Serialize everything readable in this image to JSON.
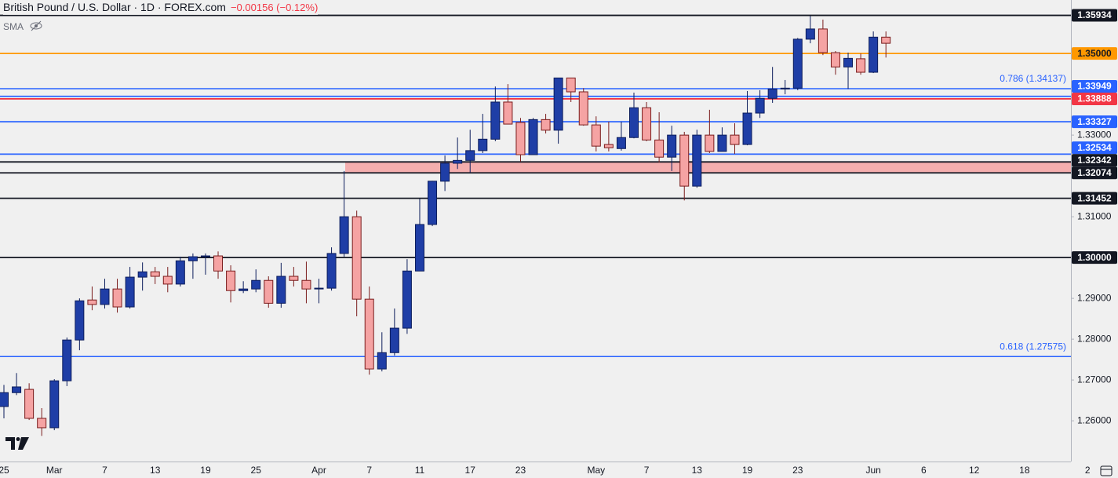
{
  "chart_data": {
    "type": "candlestick",
    "title": "British Pound / U.S. Dollar · 1D · FOREX.com",
    "change": "−0.00156 (−0.12%)",
    "indicator": "SMA",
    "categories": [
      "25",
      null,
      null,
      null,
      "Mar",
      null,
      null,
      null,
      "7",
      null,
      null,
      null,
      "13",
      null,
      null,
      null,
      "19",
      null,
      null,
      null,
      "25",
      null,
      null,
      null,
      null,
      "Apr",
      null,
      null,
      null,
      "7",
      null,
      null,
      null,
      "11",
      null,
      null,
      null,
      "17",
      null,
      null,
      null,
      "23",
      null,
      null,
      null,
      null,
      null,
      "May",
      null,
      null,
      null,
      "7",
      null,
      null,
      null,
      "13",
      null,
      null,
      null,
      "19",
      null,
      null,
      null,
      "23",
      null,
      null,
      null,
      null,
      null,
      "Jun",
      null,
      null,
      null,
      "6",
      null,
      null,
      null,
      "12",
      null,
      null,
      null,
      "18",
      null,
      null,
      null,
      null,
      "2"
    ],
    "open": [
      1.2635,
      1.2669,
      1.2677,
      1.2606,
      1.2583,
      1.2698,
      1.2798,
      1.2896,
      1.2885,
      1.2923,
      1.2879,
      1.2952,
      1.2965,
      1.2954,
      1.2935,
      1.2992,
      1.3002,
      1.3004,
      1.2967,
      1.2919,
      1.2923,
      1.2944,
      1.2888,
      1.2954,
      1.2944,
      1.2923,
      1.2925,
      1.301,
      1.31,
      1.2898,
      1.2727,
      1.2767,
      1.2827,
      1.2967,
      1.3081,
      1.3187,
      1.3231,
      1.3238,
      1.3262,
      1.329,
      1.3381,
      1.3331,
      1.3252,
      1.3338,
      1.3312,
      1.344,
      1.3406,
      1.3325,
      1.3277,
      1.3267,
      1.3294,
      1.3367,
      1.3288,
      1.3246,
      1.33,
      1.3175,
      1.33,
      1.326,
      1.33,
      1.3277,
      1.3354,
      1.339,
      1.3413,
      1.3415,
      1.3535,
      1.356,
      1.3502,
      1.3467,
      1.3487,
      1.3454,
      1.354,
      null,
      null,
      null,
      null,
      null,
      null,
      null,
      null,
      null,
      null,
      null,
      null,
      null,
      null,
      null,
      null
    ],
    "high": [
      1.2688,
      1.2717,
      1.2692,
      1.2631,
      1.2702,
      1.2804,
      1.29,
      1.2929,
      1.2948,
      1.2948,
      1.2977,
      1.2988,
      1.2977,
      1.2977,
      1.3002,
      1.301,
      1.301,
      1.3015,
      1.2981,
      1.2942,
      1.2971,
      1.2954,
      1.2987,
      1.2977,
      1.299,
      1.2948,
      1.3025,
      1.3212,
      1.3115,
      1.2929,
      1.2817,
      1.2875,
      1.2996,
      1.3144,
      1.3188,
      1.325,
      1.3294,
      1.3313,
      1.3352,
      1.3419,
      1.3425,
      1.3342,
      1.3342,
      1.3352,
      1.344,
      1.344,
      1.3415,
      1.3346,
      1.3333,
      1.3333,
      1.3404,
      1.3381,
      1.3356,
      1.3323,
      1.3308,
      1.3313,
      1.3362,
      1.3319,
      1.3329,
      1.3408,
      1.341,
      1.3467,
      1.3435,
      1.3538,
      1.3592,
      1.3583,
      1.3506,
      1.3502,
      1.35,
      1.3554,
      1.3554,
      null,
      null,
      null,
      null,
      null,
      null,
      null,
      null,
      null,
      null,
      null,
      null,
      null,
      null,
      null,
      null
    ],
    "low": [
      1.2606,
      1.2663,
      1.2602,
      1.2563,
      1.2577,
      1.2685,
      1.2773,
      1.2871,
      1.2875,
      1.2865,
      1.2875,
      1.2919,
      1.2935,
      1.2915,
      1.2929,
      1.2948,
      1.2958,
      1.2948,
      1.289,
      1.2913,
      1.2915,
      1.2877,
      1.2877,
      1.2929,
      1.2888,
      1.2888,
      1.2919,
      1.3002,
      1.2856,
      1.2713,
      1.2721,
      1.276,
      1.2813,
      1.2967,
      1.3077,
      1.3163,
      1.3217,
      1.3208,
      1.3256,
      1.3285,
      1.3327,
      1.3235,
      1.3252,
      1.3304,
      1.3279,
      1.3381,
      1.3323,
      1.326,
      1.326,
      1.3262,
      1.3292,
      1.3285,
      1.3233,
      1.3212,
      1.314,
      1.3171,
      1.3256,
      1.326,
      1.3254,
      1.3275,
      1.3342,
      1.3379,
      1.34,
      1.341,
      1.3525,
      1.3496,
      1.3448,
      1.3413,
      1.3448,
      1.3452,
      1.349,
      null,
      null,
      null,
      null,
      null,
      null,
      null,
      null,
      null,
      null,
      null,
      null,
      null,
      null,
      null,
      null
    ],
    "close": [
      1.2669,
      1.2683,
      1.2606,
      1.2583,
      1.2698,
      1.2798,
      1.2894,
      1.2885,
      1.2923,
      1.2879,
      1.2952,
      1.2965,
      1.2954,
      1.2935,
      1.2992,
      1.3002,
      1.3004,
      1.2967,
      1.2919,
      1.2923,
      1.2944,
      1.2888,
      1.2954,
      1.2944,
      1.2923,
      1.2925,
      1.301,
      1.31,
      1.2898,
      1.2727,
      1.2767,
      1.2827,
      1.2967,
      1.3081,
      1.3187,
      1.3231,
      1.3238,
      1.3262,
      1.329,
      1.3381,
      1.3327,
      1.3252,
      1.3338,
      1.3312,
      1.344,
      1.3406,
      1.3325,
      1.3273,
      1.3269,
      1.3294,
      1.3367,
      1.3288,
      1.3246,
      1.33,
      1.3175,
      1.33,
      1.326,
      1.33,
      1.3277,
      1.3354,
      1.339,
      1.3413,
      1.3415,
      1.3535,
      1.356,
      1.3502,
      1.3467,
      1.3488,
      1.3454,
      1.354,
      1.3525,
      null,
      null,
      null,
      null,
      null,
      null,
      null,
      null,
      null,
      null,
      null,
      null,
      null,
      null,
      null,
      null
    ],
    "up_color": "#1f3ea6",
    "down_color": "#f5a3a3",
    "ylim": [
      1.2506,
      1.3631
    ],
    "yticks": [
      {
        "value": 1.26,
        "label": "1.26000"
      },
      {
        "value": 1.27,
        "label": "1.27000"
      },
      {
        "value": 1.28,
        "label": "1.28000"
      },
      {
        "value": 1.29,
        "label": "1.29000"
      },
      {
        "value": 1.31,
        "label": "1.31000"
      },
      {
        "value": 1.33,
        "label": "1.33000"
      }
    ],
    "levels": [
      {
        "value": 1.35934,
        "label": "1.35934",
        "color": "#131722",
        "text_color": "#ffffff"
      },
      {
        "value": 1.35,
        "label": "1.35000",
        "color": "#ff9800",
        "text_color": "#131722"
      },
      {
        "value": 1.33949,
        "label": "1.33949",
        "color": "#2962ff",
        "text_color": "#ffffff"
      },
      {
        "value": 1.33888,
        "label": "1.33888",
        "color": "#f23645",
        "text_color": "#ffffff"
      },
      {
        "value": 1.33327,
        "label": "1.33327",
        "color": "#2962ff",
        "text_color": "#ffffff"
      },
      {
        "value": 1.32534,
        "label": "1.32534",
        "color": "#2962ff",
        "text_color": "#ffffff"
      },
      {
        "value": 1.32342,
        "label": "1.32342",
        "color": "#131722",
        "text_color": "#ffffff"
      },
      {
        "value": 1.32074,
        "label": "1.32074",
        "color": "#131722",
        "text_color": "#ffffff"
      },
      {
        "value": 1.31452,
        "label": "1.31452",
        "color": "#131722",
        "text_color": "#ffffff"
      },
      {
        "value": 1.3,
        "label": "1.30000",
        "color": "#131722",
        "text_color": "#ffffff"
      }
    ],
    "fibs": [
      {
        "value": 1.34137,
        "label": "0.786 (1.34137)"
      },
      {
        "value": 1.27575,
        "label": "0.618 (1.27575)"
      }
    ],
    "fib_color": "#2962ff",
    "zone": {
      "low": 1.32074,
      "high": 1.32342,
      "color": "#f4a6a6"
    }
  }
}
